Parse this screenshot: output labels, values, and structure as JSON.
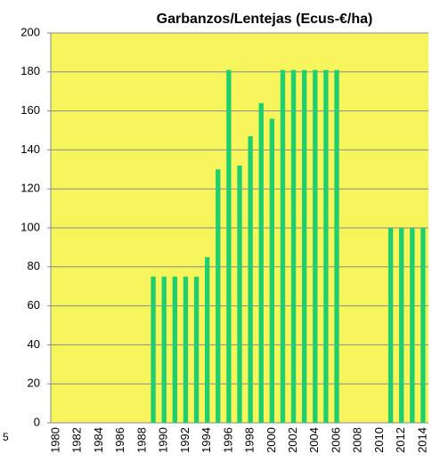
{
  "chart_data": {
    "type": "bar",
    "title": "Garbanzos/Lentejas (Ecus-€/ha)",
    "annotation": "5",
    "categories": [
      "1980",
      null,
      "1982",
      null,
      "1984",
      null,
      "1986",
      null,
      "1988",
      null,
      "1990",
      null,
      "1992",
      null,
      "1994",
      null,
      "1996",
      null,
      "1998",
      null,
      "2000",
      null,
      "2002",
      null,
      "2004",
      null,
      "2006",
      null,
      "2008",
      null,
      "2010",
      null,
      "2012",
      null,
      "2014"
    ],
    "values": [
      null,
      null,
      null,
      null,
      null,
      null,
      null,
      null,
      null,
      75,
      75,
      75,
      75,
      75,
      85,
      130,
      181,
      132,
      147,
      164,
      156,
      181,
      181,
      181,
      181,
      181,
      181,
      null,
      null,
      null,
      null,
      100,
      100,
      100,
      100
    ],
    "color": "#1fcf6e",
    "ylim": [
      0,
      200
    ],
    "yticks": [
      0,
      20,
      40,
      60,
      80,
      100,
      120,
      140,
      160,
      180,
      200
    ],
    "grid": true
  }
}
